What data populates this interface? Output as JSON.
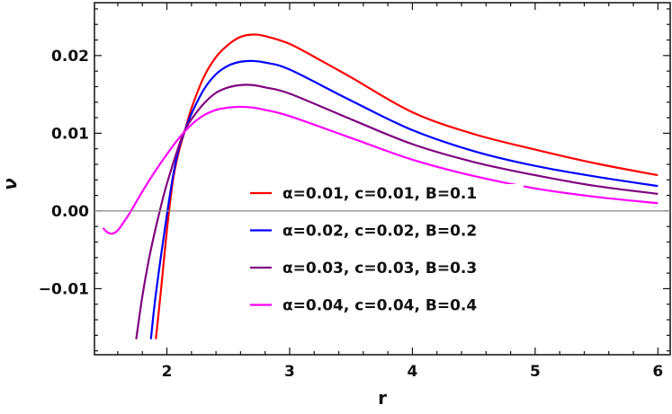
{
  "chart_data": {
    "type": "line",
    "title": "",
    "xlabel": "r",
    "ylabel": "ν",
    "xlim": [
      1.41,
      6.1
    ],
    "ylim": [
      -0.0185,
      0.0268
    ],
    "x_ticks": [
      2,
      3,
      4,
      5,
      6
    ],
    "x_tick_labels": [
      "2",
      "3",
      "4",
      "5",
      "6"
    ],
    "y_ticks": [
      -0.01,
      0,
      0.01,
      0.02
    ],
    "y_tick_labels": [
      "−0.01",
      "0.00",
      "0.01",
      "0.02"
    ],
    "grid": false,
    "zero_line": true,
    "legend_placement": "center",
    "series": [
      {
        "name": "α=0.01, c=0.01, B=0.1",
        "color": "#ff0000",
        "x": [
          1.91,
          1.95,
          2.0,
          2.05,
          2.1,
          2.15,
          2.2,
          2.3,
          2.4,
          2.5,
          2.6,
          2.7,
          2.8,
          3.0,
          3.25,
          3.5,
          4.0,
          4.5,
          5.0,
          5.5,
          6.0
        ],
        "y": [
          -0.0165,
          -0.0105,
          -0.0025,
          0.004,
          0.0078,
          0.0105,
          0.0132,
          0.0172,
          0.0198,
          0.0214,
          0.0224,
          0.0227,
          0.0225,
          0.0215,
          0.0194,
          0.0172,
          0.0127,
          0.0099,
          0.0079,
          0.0061,
          0.0046
        ]
      },
      {
        "name": "α=0.02, c=0.02, B=0.2",
        "color": "#0000ff",
        "x": [
          1.87,
          1.9,
          1.95,
          2.0,
          2.05,
          2.1,
          2.15,
          2.2,
          2.3,
          2.4,
          2.5,
          2.6,
          2.7,
          2.8,
          3.0,
          3.5,
          4.0,
          4.5,
          5.0,
          5.5,
          6.0
        ],
        "y": [
          -0.0165,
          -0.012,
          -0.006,
          -0.0005,
          0.0045,
          0.0082,
          0.0105,
          0.0125,
          0.0156,
          0.0176,
          0.0187,
          0.0192,
          0.0193,
          0.0191,
          0.0182,
          0.0142,
          0.0104,
          0.0077,
          0.0058,
          0.0044,
          0.0032
        ]
      },
      {
        "name": "α=0.03, c=0.03, B=0.3",
        "color": "#800080",
        "x": [
          1.75,
          1.8,
          1.85,
          1.9,
          1.95,
          2.0,
          2.1,
          2.15,
          2.2,
          2.3,
          2.4,
          2.5,
          2.6,
          2.7,
          2.8,
          3.0,
          3.5,
          4.0,
          4.5,
          5.0,
          5.5,
          6.0
        ],
        "y": [
          -0.0165,
          -0.011,
          -0.0065,
          -0.0028,
          0.0005,
          0.0035,
          0.0085,
          0.0105,
          0.0118,
          0.0138,
          0.0152,
          0.0159,
          0.0162,
          0.0162,
          0.0159,
          0.0151,
          0.0118,
          0.0086,
          0.0063,
          0.0046,
          0.0032,
          0.0022
        ]
      },
      {
        "name": "α=0.04, c=0.04, B=0.4",
        "color": "#ff00ff",
        "x": [
          1.48,
          1.52,
          1.56,
          1.6,
          1.65,
          1.7,
          1.8,
          1.9,
          2.0,
          2.1,
          2.2,
          2.3,
          2.4,
          2.5,
          2.6,
          2.7,
          2.8,
          3.0,
          3.5,
          4.0,
          4.5,
          5.0,
          5.5,
          6.0
        ],
        "y": [
          -0.0022,
          -0.0028,
          -0.0029,
          -0.0025,
          -0.0014,
          -0.0002,
          0.0025,
          0.005,
          0.0073,
          0.0094,
          0.0111,
          0.0123,
          0.013,
          0.0133,
          0.0134,
          0.0133,
          0.013,
          0.0122,
          0.0094,
          0.0066,
          0.0045,
          0.0029,
          0.0018,
          0.001
        ]
      }
    ]
  }
}
